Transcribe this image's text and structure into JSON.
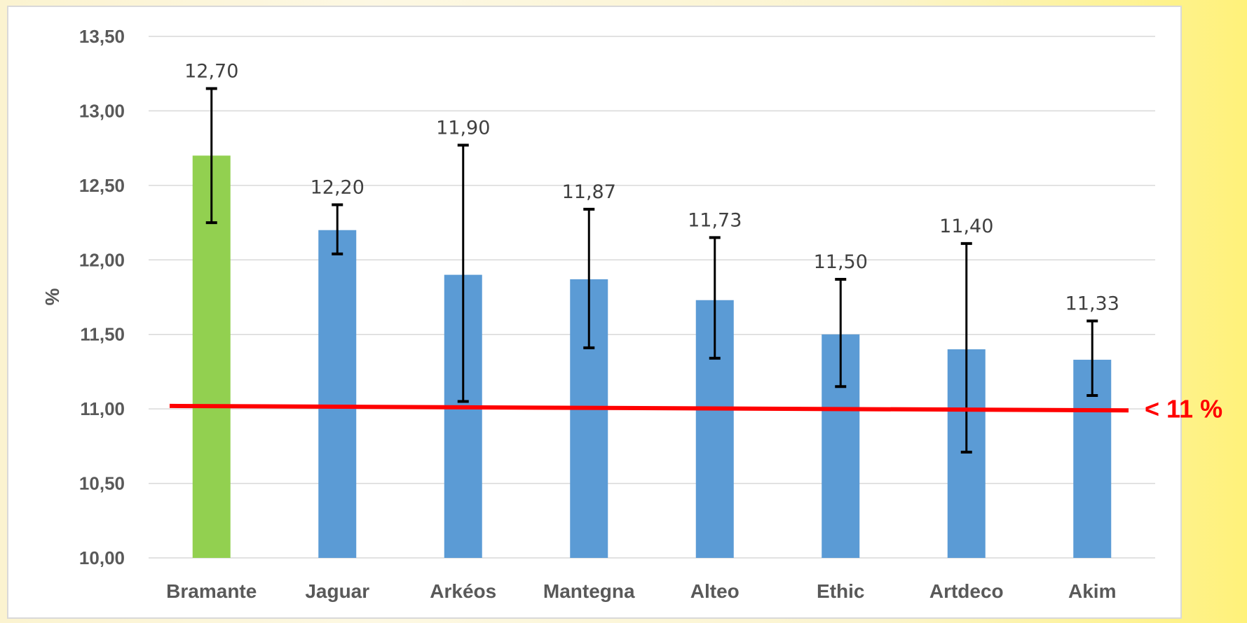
{
  "chart_data": {
    "type": "bar",
    "categories": [
      "Bramante",
      "Jaguar",
      "Arkéos",
      "Mantegna",
      "Alteo",
      "Ethic",
      "Artdeco",
      "Akim"
    ],
    "values": [
      12.7,
      12.2,
      11.9,
      11.87,
      11.73,
      11.5,
      11.4,
      11.33
    ],
    "data_labels": [
      "12,70",
      "12,20",
      "11,90",
      "11,87",
      "11,73",
      "11,50",
      "11,40",
      "11,33"
    ],
    "error_low": [
      12.25,
      12.04,
      11.05,
      11.41,
      11.34,
      11.15,
      10.71,
      11.09
    ],
    "error_high": [
      13.15,
      12.37,
      12.77,
      12.34,
      12.15,
      11.87,
      12.11,
      11.59
    ],
    "bar_colors": [
      "#92d050",
      "#5b9bd5",
      "#5b9bd5",
      "#5b9bd5",
      "#5b9bd5",
      "#5b9bd5",
      "#5b9bd5",
      "#5b9bd5"
    ],
    "ylabel": "%",
    "ylim": [
      10.0,
      13.5
    ],
    "yticks": [
      10.0,
      10.5,
      11.0,
      11.5,
      12.0,
      12.5,
      13.0,
      13.5
    ],
    "ytick_labels": [
      "10,00",
      "10,50",
      "11,00",
      "11,50",
      "12,00",
      "12,50",
      "13,00",
      "13,50"
    ],
    "grid": true,
    "reference_line": {
      "y_start": 11.02,
      "y_end": 10.99,
      "label": "< 11 %",
      "color": "#ff0000"
    }
  }
}
